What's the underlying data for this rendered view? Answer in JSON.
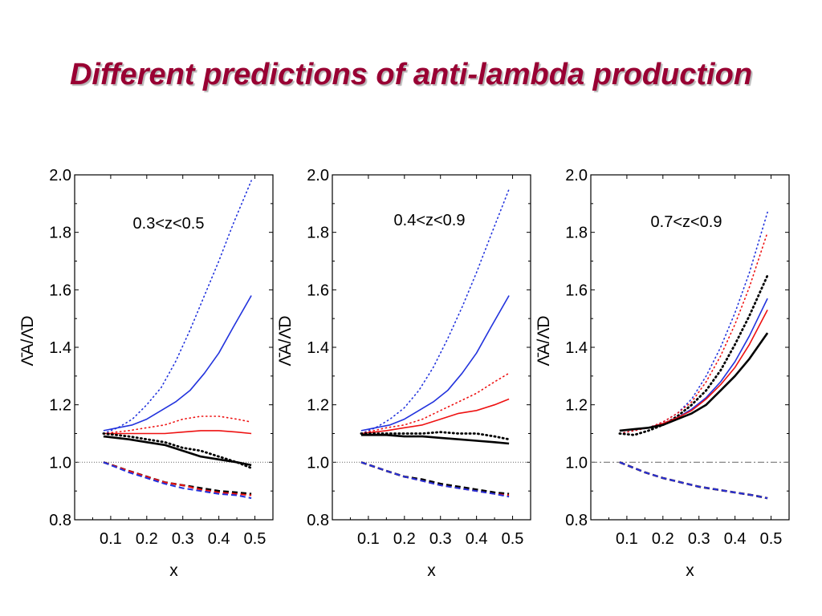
{
  "slide": {
    "title": "Different predictions of anti-lambda production"
  },
  "colors": {
    "title": "#990033",
    "black": "#000000",
    "red": "#ee1111",
    "blue": "#2233dd",
    "reference": "#777777"
  },
  "chart_data": [
    {
      "type": "line",
      "annotation": "0.3<z<0.5",
      "xlabel": "x",
      "ylabel": "Λ̄A/Λ̄D",
      "xlim": [
        0.0,
        0.55
      ],
      "ylim": [
        0.8,
        2.0
      ],
      "xticks": [
        "0.1",
        "0.2",
        "0.3",
        "0.4",
        "0.5"
      ],
      "yticks": [
        "0.8",
        "1.0",
        "1.2",
        "1.4",
        "1.6",
        "1.8",
        "2.0"
      ],
      "reference_line": 1.0,
      "series": [
        {
          "color": "blue",
          "style": "dotted",
          "x": [
            0.08,
            0.12,
            0.16,
            0.2,
            0.24,
            0.28,
            0.32,
            0.36,
            0.4,
            0.44,
            0.49
          ],
          "y": [
            1.1,
            1.12,
            1.15,
            1.2,
            1.26,
            1.35,
            1.46,
            1.58,
            1.7,
            1.83,
            1.98
          ]
        },
        {
          "color": "blue",
          "style": "solid",
          "x": [
            0.08,
            0.12,
            0.16,
            0.2,
            0.24,
            0.28,
            0.32,
            0.36,
            0.4,
            0.44,
            0.49
          ],
          "y": [
            1.11,
            1.12,
            1.13,
            1.15,
            1.18,
            1.21,
            1.25,
            1.31,
            1.38,
            1.47,
            1.58
          ]
        },
        {
          "color": "red",
          "style": "dotted",
          "x": [
            0.08,
            0.15,
            0.2,
            0.25,
            0.3,
            0.35,
            0.4,
            0.45,
            0.49
          ],
          "y": [
            1.1,
            1.11,
            1.12,
            1.13,
            1.15,
            1.16,
            1.16,
            1.15,
            1.14
          ]
        },
        {
          "color": "red",
          "style": "solid",
          "x": [
            0.08,
            0.15,
            0.2,
            0.25,
            0.3,
            0.35,
            0.4,
            0.45,
            0.49
          ],
          "y": [
            1.1,
            1.1,
            1.1,
            1.1,
            1.105,
            1.11,
            1.11,
            1.105,
            1.1
          ]
        },
        {
          "color": "black",
          "style": "dotted",
          "x": [
            0.08,
            0.15,
            0.2,
            0.25,
            0.3,
            0.35,
            0.4,
            0.45,
            0.49
          ],
          "y": [
            1.1,
            1.09,
            1.08,
            1.07,
            1.05,
            1.04,
            1.02,
            1.0,
            0.98
          ]
        },
        {
          "color": "black",
          "style": "solid",
          "x": [
            0.08,
            0.15,
            0.2,
            0.25,
            0.3,
            0.35,
            0.4,
            0.45,
            0.49
          ],
          "y": [
            1.09,
            1.08,
            1.07,
            1.06,
            1.04,
            1.02,
            1.01,
            1.0,
            0.99
          ]
        },
        {
          "color": "black",
          "style": "dashed",
          "x": [
            0.08,
            0.15,
            0.2,
            0.25,
            0.3,
            0.35,
            0.4,
            0.45,
            0.49
          ],
          "y": [
            1.0,
            0.97,
            0.95,
            0.93,
            0.92,
            0.91,
            0.9,
            0.895,
            0.89
          ]
        },
        {
          "color": "red",
          "style": "dashed",
          "x": [
            0.08,
            0.15,
            0.2,
            0.25,
            0.3,
            0.35,
            0.4,
            0.45,
            0.49
          ],
          "y": [
            1.0,
            0.97,
            0.95,
            0.93,
            0.92,
            0.905,
            0.895,
            0.89,
            0.885
          ]
        },
        {
          "color": "blue",
          "style": "dashed",
          "x": [
            0.08,
            0.15,
            0.2,
            0.25,
            0.3,
            0.35,
            0.4,
            0.45,
            0.49
          ],
          "y": [
            1.0,
            0.965,
            0.945,
            0.925,
            0.91,
            0.9,
            0.89,
            0.885,
            0.875
          ]
        }
      ]
    },
    {
      "type": "line",
      "annotation": "0.4<z<0.9",
      "xlabel": "x",
      "ylabel": "Λ̄A/Λ̄D",
      "xlim": [
        0.0,
        0.55
      ],
      "ylim": [
        0.8,
        2.0
      ],
      "xticks": [
        "0.1",
        "0.2",
        "0.3",
        "0.4",
        "0.5"
      ],
      "yticks": [
        "0.8",
        "1.0",
        "1.2",
        "1.4",
        "1.6",
        "1.8",
        "2.0"
      ],
      "reference_line": 1.0,
      "series": [
        {
          "color": "blue",
          "style": "dotted",
          "x": [
            0.08,
            0.12,
            0.16,
            0.2,
            0.24,
            0.28,
            0.32,
            0.36,
            0.4,
            0.44,
            0.49
          ],
          "y": [
            1.1,
            1.12,
            1.15,
            1.19,
            1.25,
            1.33,
            1.43,
            1.54,
            1.66,
            1.79,
            1.95
          ]
        },
        {
          "color": "blue",
          "style": "solid",
          "x": [
            0.08,
            0.12,
            0.16,
            0.2,
            0.24,
            0.28,
            0.32,
            0.36,
            0.4,
            0.44,
            0.49
          ],
          "y": [
            1.11,
            1.12,
            1.13,
            1.15,
            1.18,
            1.21,
            1.25,
            1.31,
            1.38,
            1.47,
            1.58
          ]
        },
        {
          "color": "red",
          "style": "dotted",
          "x": [
            0.08,
            0.15,
            0.2,
            0.25,
            0.3,
            0.35,
            0.4,
            0.45,
            0.49
          ],
          "y": [
            1.1,
            1.12,
            1.13,
            1.15,
            1.18,
            1.21,
            1.24,
            1.28,
            1.31
          ]
        },
        {
          "color": "red",
          "style": "solid",
          "x": [
            0.08,
            0.15,
            0.2,
            0.25,
            0.3,
            0.35,
            0.4,
            0.45,
            0.49
          ],
          "y": [
            1.1,
            1.11,
            1.12,
            1.13,
            1.15,
            1.17,
            1.18,
            1.2,
            1.22
          ]
        },
        {
          "color": "black",
          "style": "dotted",
          "x": [
            0.08,
            0.15,
            0.2,
            0.25,
            0.3,
            0.35,
            0.4,
            0.45,
            0.49
          ],
          "y": [
            1.1,
            1.1,
            1.1,
            1.1,
            1.105,
            1.1,
            1.1,
            1.09,
            1.08
          ]
        },
        {
          "color": "black",
          "style": "solid",
          "x": [
            0.08,
            0.15,
            0.2,
            0.25,
            0.3,
            0.35,
            0.4,
            0.45,
            0.49
          ],
          "y": [
            1.095,
            1.095,
            1.09,
            1.09,
            1.085,
            1.08,
            1.075,
            1.07,
            1.065
          ]
        },
        {
          "color": "black",
          "style": "dashed",
          "x": [
            0.08,
            0.15,
            0.2,
            0.25,
            0.3,
            0.35,
            0.4,
            0.45,
            0.49
          ],
          "y": [
            1.0,
            0.97,
            0.95,
            0.94,
            0.925,
            0.915,
            0.905,
            0.895,
            0.89
          ]
        },
        {
          "color": "red",
          "style": "dashed",
          "x": [
            0.08,
            0.15,
            0.2,
            0.25,
            0.3,
            0.35,
            0.4,
            0.45,
            0.49
          ],
          "y": [
            1.0,
            0.97,
            0.95,
            0.935,
            0.92,
            0.91,
            0.9,
            0.89,
            0.885
          ]
        },
        {
          "color": "blue",
          "style": "dashed",
          "x": [
            0.08,
            0.15,
            0.2,
            0.25,
            0.3,
            0.35,
            0.4,
            0.45,
            0.49
          ],
          "y": [
            1.0,
            0.97,
            0.95,
            0.935,
            0.92,
            0.91,
            0.9,
            0.89,
            0.88
          ]
        }
      ]
    },
    {
      "type": "line",
      "annotation": "0.7<z<0.9",
      "xlabel": "x",
      "ylabel": "Λ̄A/Λ̄D",
      "xlim": [
        0.0,
        0.55
      ],
      "ylim": [
        0.8,
        2.0
      ],
      "xticks": [
        "0.1",
        "0.2",
        "0.3",
        "0.4",
        "0.5"
      ],
      "yticks": [
        "0.8",
        "1.0",
        "1.2",
        "1.4",
        "1.6",
        "1.8",
        "2.0"
      ],
      "reference_line": 1.0,
      "series": [
        {
          "color": "blue",
          "style": "dotted",
          "x": [
            0.08,
            0.12,
            0.16,
            0.2,
            0.24,
            0.28,
            0.32,
            0.36,
            0.4,
            0.44,
            0.49
          ],
          "y": [
            1.1,
            1.11,
            1.12,
            1.14,
            1.17,
            1.22,
            1.3,
            1.4,
            1.52,
            1.66,
            1.87
          ]
        },
        {
          "color": "red",
          "style": "dotted",
          "x": [
            0.08,
            0.12,
            0.16,
            0.2,
            0.24,
            0.28,
            0.32,
            0.36,
            0.4,
            0.44,
            0.49
          ],
          "y": [
            1.1,
            1.11,
            1.12,
            1.14,
            1.17,
            1.21,
            1.28,
            1.37,
            1.48,
            1.61,
            1.8
          ]
        },
        {
          "color": "black",
          "style": "dotted",
          "x": [
            0.08,
            0.12,
            0.16,
            0.2,
            0.24,
            0.28,
            0.32,
            0.36,
            0.4,
            0.44,
            0.49
          ],
          "y": [
            1.1,
            1.095,
            1.11,
            1.13,
            1.16,
            1.2,
            1.25,
            1.32,
            1.41,
            1.51,
            1.65
          ]
        },
        {
          "color": "blue",
          "style": "solid",
          "x": [
            0.08,
            0.12,
            0.16,
            0.2,
            0.24,
            0.28,
            0.32,
            0.36,
            0.4,
            0.44,
            0.49
          ],
          "y": [
            1.11,
            1.115,
            1.12,
            1.135,
            1.155,
            1.185,
            1.225,
            1.28,
            1.35,
            1.44,
            1.57
          ]
        },
        {
          "color": "red",
          "style": "solid",
          "x": [
            0.08,
            0.12,
            0.16,
            0.2,
            0.24,
            0.28,
            0.32,
            0.36,
            0.4,
            0.44,
            0.49
          ],
          "y": [
            1.11,
            1.115,
            1.12,
            1.135,
            1.155,
            1.18,
            1.22,
            1.27,
            1.33,
            1.41,
            1.53
          ]
        },
        {
          "color": "black",
          "style": "solid",
          "x": [
            0.08,
            0.12,
            0.16,
            0.2,
            0.24,
            0.28,
            0.32,
            0.36,
            0.4,
            0.44,
            0.49
          ],
          "y": [
            1.11,
            1.115,
            1.12,
            1.13,
            1.15,
            1.17,
            1.2,
            1.25,
            1.3,
            1.36,
            1.45
          ]
        },
        {
          "color": "black",
          "style": "dashed",
          "x": [
            0.08,
            0.15,
            0.2,
            0.25,
            0.3,
            0.35,
            0.4,
            0.45,
            0.49
          ],
          "y": [
            1.0,
            0.965,
            0.945,
            0.93,
            0.915,
            0.905,
            0.895,
            0.885,
            0.875
          ]
        },
        {
          "color": "red",
          "style": "dashed",
          "x": [
            0.08,
            0.15,
            0.2,
            0.25,
            0.3,
            0.35,
            0.4,
            0.45,
            0.49
          ],
          "y": [
            1.0,
            0.965,
            0.945,
            0.93,
            0.915,
            0.905,
            0.895,
            0.885,
            0.875
          ]
        },
        {
          "color": "blue",
          "style": "dashed",
          "x": [
            0.08,
            0.15,
            0.2,
            0.25,
            0.3,
            0.35,
            0.4,
            0.45,
            0.49
          ],
          "y": [
            1.0,
            0.965,
            0.945,
            0.93,
            0.915,
            0.905,
            0.895,
            0.885,
            0.875
          ]
        }
      ]
    }
  ]
}
